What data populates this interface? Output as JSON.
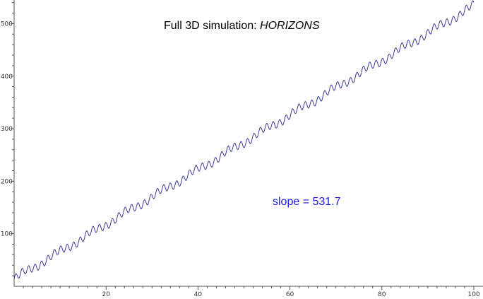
{
  "chart_data": {
    "type": "line",
    "title": "Full 3D simulation: ",
    "title_italic": "HORIZONS",
    "annotation": "slope = 531.7",
    "xlabel": "",
    "ylabel": "",
    "xlim": [
      0,
      102
    ],
    "ylim": [
      0,
      545
    ],
    "x_ticks": [
      20,
      40,
      60,
      80,
      100
    ],
    "y_ticks": [
      100,
      200,
      300,
      400,
      500
    ],
    "grid": false,
    "line_color": "#3a3a9a",
    "annotation_color": "#1a1aee",
    "series": [
      {
        "slope_per_unit_x": 5.2,
        "intercept": 14,
        "oscillation": {
          "period_x": 1.4,
          "amplitude": 7,
          "secondary_period_x": 7.5,
          "secondary_amplitude": 4
        }
      }
    ]
  }
}
